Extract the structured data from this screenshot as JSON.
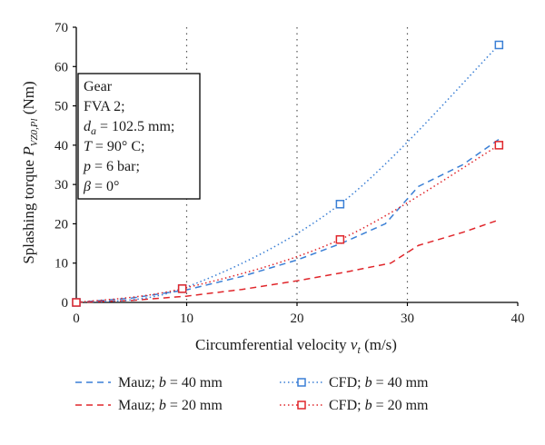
{
  "chart_data": {
    "type": "line",
    "xlabel": "Circumferential velocity v_t (m/s)",
    "ylabel": "Splashing torque P_VZ0,Pl (Nm)",
    "xlim": [
      0,
      40
    ],
    "ylim": [
      0,
      70
    ],
    "x_ticks": [
      "0",
      "10",
      "20",
      "30",
      "40"
    ],
    "y_ticks": [
      "0",
      "10",
      "20",
      "30",
      "40",
      "50",
      "60",
      "70"
    ],
    "grid": "dotted at x = 10, 20, 30",
    "legend_position": "below plot, two columns",
    "info_box_lines": [
      "Gear",
      "FVA 2;",
      "d_a = 102.5 mm;",
      "T = 90° C;",
      "p = 6 bar;",
      "β = 0°"
    ],
    "series": [
      {
        "name": "Mauz; b = 40 mm",
        "style": "dashed",
        "color": "#3a7fd5",
        "x": [
          0,
          5,
          10,
          15,
          20,
          24,
          28,
          31,
          35,
          38.3
        ],
        "y": [
          0,
          1.1,
          3.2,
          6.6,
          10.8,
          15,
          20,
          29.5,
          35,
          41.5
        ]
      },
      {
        "name": "Mauz; b = 20 mm",
        "style": "dashed",
        "color": "#e0262b",
        "x": [
          0,
          5,
          10,
          15,
          20,
          24,
          28.5,
          31,
          35,
          38.3
        ],
        "y": [
          0,
          0.5,
          1.6,
          3.3,
          5.5,
          7.5,
          10,
          14.5,
          17.8,
          21
        ]
      },
      {
        "name": "CFD; b = 40 mm",
        "style": "dotted",
        "color": "#3a7fd5",
        "x": [
          0,
          9.6,
          23.9,
          38.3
        ],
        "y": [
          0,
          3.5,
          25,
          65.5
        ],
        "markers": "square"
      },
      {
        "name": "CFD; b = 20 mm",
        "style": "dotted",
        "color": "#e0262b",
        "x": [
          0,
          9.6,
          23.9,
          38.3
        ],
        "y": [
          0,
          3.5,
          16,
          40
        ],
        "markers": "square"
      }
    ]
  }
}
